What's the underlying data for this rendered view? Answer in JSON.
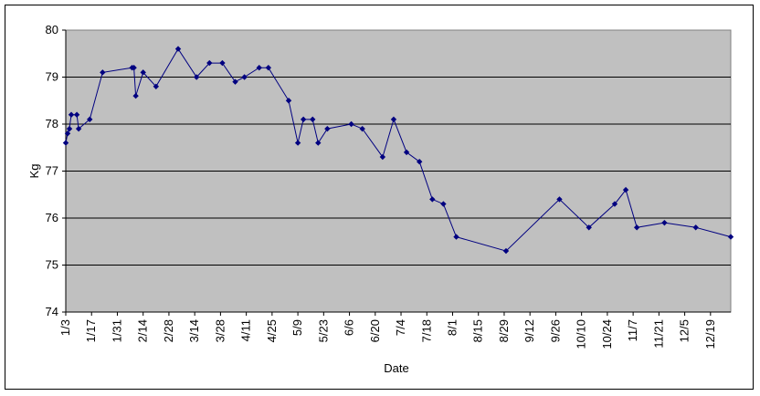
{
  "chart_data": {
    "type": "line",
    "xlabel": "Date",
    "ylabel": "Kg",
    "ylim": [
      74,
      80
    ],
    "yticks": [
      74,
      75,
      76,
      77,
      78,
      79,
      80
    ],
    "grid": true,
    "legend": "none",
    "x_tick_labels": [
      "1/3",
      "1/17",
      "1/31",
      "2/14",
      "2/28",
      "3/14",
      "3/28",
      "4/11",
      "4/25",
      "5/9",
      "5/23",
      "6/6",
      "6/20",
      "7/4",
      "7/18",
      "8/1",
      "8/15",
      "8/29",
      "9/12",
      "9/26",
      "10/10",
      "10/24",
      "11/7",
      "11/21",
      "12/5",
      "12/19"
    ],
    "colors": {
      "plot_background": "#c0c0c0",
      "series": "#000080",
      "gridline": "#000000"
    },
    "series": [
      {
        "x": [
          "1/3",
          "1/4",
          "1/5",
          "1/6",
          "1/9",
          "1/10",
          "1/16",
          "1/23",
          "2/8",
          "2/9",
          "2/10",
          "2/14",
          "2/21",
          "3/5",
          "3/15",
          "3/22",
          "3/29",
          "4/5",
          "4/10",
          "4/18",
          "4/23",
          "5/4",
          "5/9",
          "5/12",
          "5/17",
          "5/20",
          "5/25",
          "6/7",
          "6/13",
          "6/24",
          "6/30",
          "7/7",
          "7/14",
          "7/21",
          "7/27",
          "8/3",
          "8/30",
          "9/28",
          "10/14",
          "10/28",
          "11/3",
          "11/9",
          "11/24",
          "12/11",
          "12/30"
        ],
        "y": [
          77.6,
          77.8,
          77.9,
          78.2,
          78.2,
          77.9,
          78.1,
          79.1,
          79.2,
          79.2,
          78.6,
          79.1,
          78.8,
          79.6,
          79.0,
          79.3,
          79.3,
          78.9,
          79.0,
          79.2,
          79.2,
          78.5,
          77.6,
          78.1,
          78.1,
          77.6,
          77.9,
          78.0,
          77.9,
          77.3,
          78.1,
          77.4,
          77.2,
          76.4,
          76.3,
          75.6,
          75.3,
          76.4,
          75.8,
          76.3,
          76.6,
          75.8,
          75.9,
          75.8,
          75.6
        ]
      }
    ]
  }
}
